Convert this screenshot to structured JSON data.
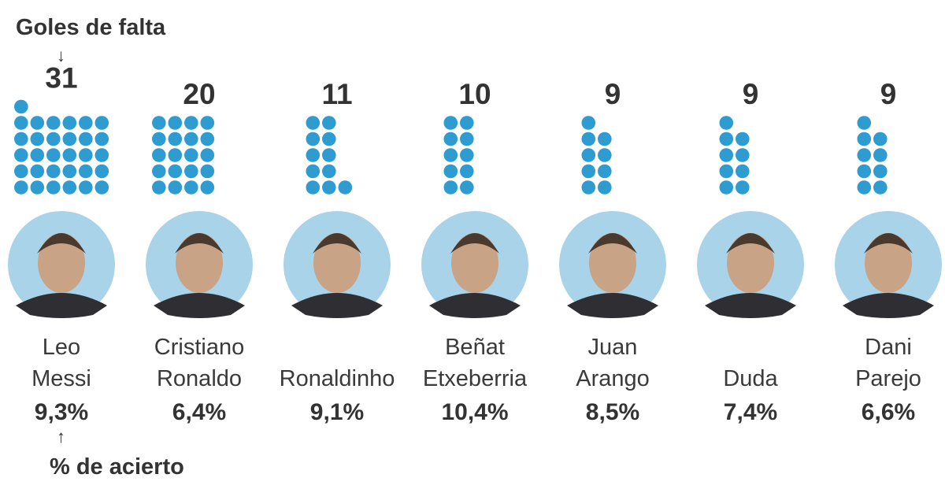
{
  "annotations": {
    "count_label": "Goles de falta",
    "rate_label": "% de acierto",
    "arrow_down": "↓",
    "arrow_up": "↑"
  },
  "colors": {
    "dot": "#2e9cd1",
    "avatar_bg": "#a9d3e8",
    "text": "#3a3a3a"
  },
  "chart_data": {
    "type": "pictogram",
    "title": "",
    "unit": "Goles de falta",
    "secondary_unit": "% de acierto",
    "players": [
      {
        "name_lines": [
          "Leo",
          "Messi"
        ],
        "goals": 31,
        "rate": "9,3%",
        "rate_value": 9.3,
        "icon": "player-photo-leo-messi"
      },
      {
        "name_lines": [
          "Cristiano",
          "Ronaldo"
        ],
        "goals": 20,
        "rate": "6,4%",
        "rate_value": 6.4,
        "icon": "player-photo-cristiano-ronaldo"
      },
      {
        "name_lines": [
          "Ronaldinho"
        ],
        "goals": 11,
        "rate": "9,1%",
        "rate_value": 9.1,
        "icon": "player-photo-ronaldinho"
      },
      {
        "name_lines": [
          "Beñat",
          "Etxeberria"
        ],
        "goals": 10,
        "rate": "10,4%",
        "rate_value": 10.4,
        "icon": "player-photo-benat-etxeberria"
      },
      {
        "name_lines": [
          "Juan",
          "Arango"
        ],
        "goals": 9,
        "rate": "8,5%",
        "rate_value": 8.5,
        "icon": "player-photo-juan-arango"
      },
      {
        "name_lines": [
          "Duda"
        ],
        "goals": 9,
        "rate": "7,4%",
        "rate_value": 7.4,
        "icon": "player-photo-duda"
      },
      {
        "name_lines": [
          "Dani",
          "Parejo"
        ],
        "goals": 9,
        "rate": "6,6%",
        "rate_value": 6.6,
        "icon": "player-photo-dani-parejo"
      }
    ]
  }
}
